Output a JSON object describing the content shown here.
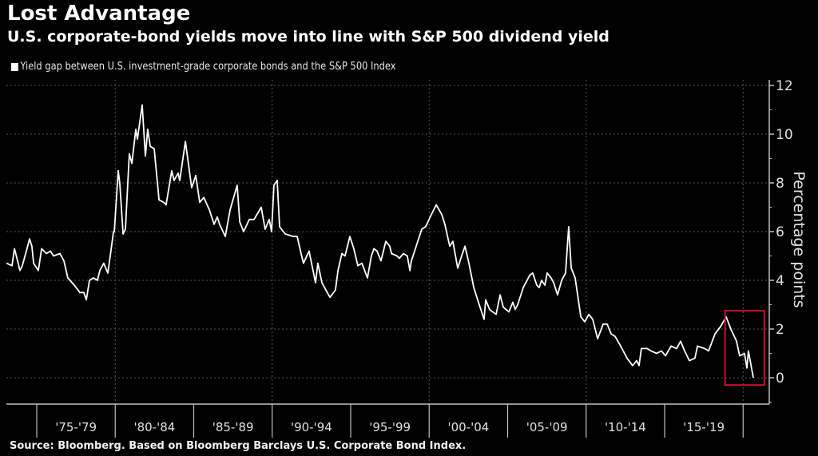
{
  "header": {
    "title": "Lost Advantage",
    "subtitle": "U.S. corporate-bond yields move into line with S&P 500 dividend yield"
  },
  "legend": {
    "label": "Yield gap between U.S. investment-grade corporate bonds and the S&P 500 Index"
  },
  "footer": {
    "source": "Source: Bloomberg. Based on Bloomberg Barclays U.S. Corporate Bond Index."
  },
  "colors": {
    "background": "#000000",
    "line": "#ffffff",
    "highlight_box": "#c8102e",
    "grid": "#555555",
    "axis": "#bfbfbf"
  },
  "chart_data": {
    "type": "line",
    "title": "Lost Advantage",
    "subtitle": "U.S. corporate-bond yields move into line with S&P 500 dividend yield",
    "xlabel": "",
    "ylabel": "Percentage points",
    "y_axis_side": "right",
    "ylim": [
      -1,
      12.2
    ],
    "yticks": [
      0,
      2,
      4,
      6,
      8,
      10,
      12
    ],
    "xlim": [
      1973.0,
      2021.6
    ],
    "x_category_labels": [
      {
        "label": "'75-'79",
        "start": 1975,
        "end": 1980
      },
      {
        "label": "'80-'84",
        "start": 1980,
        "end": 1985
      },
      {
        "label": "'85-'89",
        "start": 1985,
        "end": 1990
      },
      {
        "label": "'90-'94",
        "start": 1990,
        "end": 1995
      },
      {
        "label": "'95-'99",
        "start": 1995,
        "end": 2000
      },
      {
        "label": "'00-'04",
        "start": 2000,
        "end": 2005
      },
      {
        "label": "'05-'09",
        "start": 2005,
        "end": 2010
      },
      {
        "label": "'10-'14",
        "start": 2010,
        "end": 2015
      },
      {
        "label": "'15-'19",
        "start": 2015,
        "end": 2020
      }
    ],
    "x_separators": [
      1975,
      1980,
      1985,
      1990,
      1995,
      2000,
      2005,
      2010,
      2015,
      2020
    ],
    "x_gridlines": [
      1980,
      1990,
      2000,
      2010,
      2020
    ],
    "grid": true,
    "legend_position": "top-left",
    "annotation": {
      "type": "highlight-box",
      "x_range": [
        2018.85,
        2021.35
      ],
      "y_range": [
        -0.3,
        2.75
      ],
      "note": "recent decline highlighted in red box"
    },
    "series": [
      {
        "name": "Yield gap between U.S. investment-grade corporate bonds and the S&P 500 Index",
        "points": [
          [
            1973.07,
            4.7
          ],
          [
            1973.42,
            4.6
          ],
          [
            1973.58,
            5.3
          ],
          [
            1973.78,
            4.8
          ],
          [
            1973.93,
            4.4
          ],
          [
            1974.08,
            4.6
          ],
          [
            1974.34,
            5.2
          ],
          [
            1974.54,
            5.7
          ],
          [
            1974.69,
            5.4
          ],
          [
            1974.8,
            4.7
          ],
          [
            1975.1,
            4.4
          ],
          [
            1975.31,
            5.3
          ],
          [
            1975.61,
            5.1
          ],
          [
            1975.87,
            5.2
          ],
          [
            1976.07,
            5.0
          ],
          [
            1976.48,
            5.1
          ],
          [
            1976.73,
            4.8
          ],
          [
            1976.98,
            4.1
          ],
          [
            1977.39,
            3.8
          ],
          [
            1977.75,
            3.5
          ],
          [
            1978.0,
            3.5
          ],
          [
            1978.16,
            3.2
          ],
          [
            1978.36,
            4.0
          ],
          [
            1978.61,
            4.1
          ],
          [
            1978.87,
            4.0
          ],
          [
            1979.02,
            4.4
          ],
          [
            1979.27,
            4.7
          ],
          [
            1979.53,
            4.3
          ],
          [
            1979.68,
            5.0
          ],
          [
            1979.89,
            6.0
          ],
          [
            1979.94,
            6.0
          ],
          [
            1980.19,
            8.5
          ],
          [
            1980.29,
            8.0
          ],
          [
            1980.5,
            5.9
          ],
          [
            1980.65,
            6.1
          ],
          [
            1980.9,
            9.2
          ],
          [
            1981.06,
            8.8
          ],
          [
            1981.31,
            10.2
          ],
          [
            1981.41,
            9.8
          ],
          [
            1981.72,
            11.2
          ],
          [
            1981.92,
            9.1
          ],
          [
            1982.07,
            10.2
          ],
          [
            1982.23,
            9.5
          ],
          [
            1982.48,
            9.4
          ],
          [
            1982.79,
            7.3
          ],
          [
            1983.09,
            7.2
          ],
          [
            1983.24,
            7.1
          ],
          [
            1983.6,
            8.5
          ],
          [
            1983.75,
            8.1
          ],
          [
            1984.01,
            8.4
          ],
          [
            1984.11,
            8.1
          ],
          [
            1984.47,
            9.7
          ],
          [
            1984.62,
            9.0
          ],
          [
            1984.87,
            7.8
          ],
          [
            1985.13,
            8.3
          ],
          [
            1985.38,
            7.2
          ],
          [
            1985.64,
            7.4
          ],
          [
            1985.99,
            6.9
          ],
          [
            1986.3,
            6.3
          ],
          [
            1986.5,
            6.6
          ],
          [
            1986.65,
            6.3
          ],
          [
            1987.01,
            5.8
          ],
          [
            1987.32,
            6.9
          ],
          [
            1987.77,
            7.9
          ],
          [
            1987.93,
            6.4
          ],
          [
            1988.18,
            6.0
          ],
          [
            1988.54,
            6.5
          ],
          [
            1988.84,
            6.5
          ],
          [
            1989.3,
            7.0
          ],
          [
            1989.55,
            6.1
          ],
          [
            1989.81,
            6.5
          ],
          [
            1989.96,
            6.0
          ],
          [
            1990.11,
            7.9
          ],
          [
            1990.32,
            8.1
          ],
          [
            1990.47,
            6.2
          ],
          [
            1990.83,
            5.9
          ],
          [
            1991.34,
            5.8
          ],
          [
            1991.59,
            5.8
          ],
          [
            1991.84,
            5.1
          ],
          [
            1991.99,
            4.7
          ],
          [
            1992.35,
            5.2
          ],
          [
            1992.76,
            3.9
          ],
          [
            1992.91,
            4.7
          ],
          [
            1993.17,
            3.9
          ],
          [
            1993.42,
            3.6
          ],
          [
            1993.68,
            3.3
          ],
          [
            1994.03,
            3.6
          ],
          [
            1994.19,
            4.4
          ],
          [
            1994.44,
            5.1
          ],
          [
            1994.64,
            5.0
          ],
          [
            1994.95,
            5.8
          ],
          [
            1995.2,
            5.3
          ],
          [
            1995.46,
            4.6
          ],
          [
            1995.71,
            4.7
          ],
          [
            1996.07,
            4.1
          ],
          [
            1996.32,
            5.0
          ],
          [
            1996.48,
            5.3
          ],
          [
            1996.68,
            5.2
          ],
          [
            1996.93,
            4.8
          ],
          [
            1997.24,
            5.6
          ],
          [
            1997.49,
            5.4
          ],
          [
            1997.6,
            5.1
          ],
          [
            1997.95,
            5.0
          ],
          [
            1998.1,
            4.9
          ],
          [
            1998.36,
            5.1
          ],
          [
            1998.61,
            5.0
          ],
          [
            1998.77,
            4.4
          ],
          [
            1998.87,
            4.8
          ],
          [
            1999.12,
            5.3
          ],
          [
            1999.53,
            6.1
          ],
          [
            1999.78,
            6.2
          ],
          [
            2000.14,
            6.7
          ],
          [
            2000.45,
            7.1
          ],
          [
            2000.8,
            6.7
          ],
          [
            2001.0,
            6.3
          ],
          [
            2001.31,
            5.4
          ],
          [
            2001.51,
            5.6
          ],
          [
            2001.82,
            4.5
          ],
          [
            2002.07,
            5.0
          ],
          [
            2002.28,
            5.4
          ],
          [
            2002.53,
            4.7
          ],
          [
            2002.84,
            3.7
          ],
          [
            2003.19,
            3.0
          ],
          [
            2003.5,
            2.4
          ],
          [
            2003.6,
            3.2
          ],
          [
            2003.85,
            2.8
          ],
          [
            2004.26,
            2.6
          ],
          [
            2004.52,
            3.4
          ],
          [
            2004.72,
            2.9
          ],
          [
            2005.08,
            2.7
          ],
          [
            2005.33,
            3.1
          ],
          [
            2005.48,
            2.8
          ],
          [
            2005.64,
            3.0
          ],
          [
            2005.99,
            3.7
          ],
          [
            2006.4,
            4.2
          ],
          [
            2006.6,
            4.3
          ],
          [
            2006.86,
            3.8
          ],
          [
            2007.01,
            3.7
          ],
          [
            2007.16,
            4.0
          ],
          [
            2007.37,
            3.8
          ],
          [
            2007.52,
            4.3
          ],
          [
            2007.77,
            4.1
          ],
          [
            2007.93,
            3.9
          ],
          [
            2008.18,
            3.4
          ],
          [
            2008.44,
            4.0
          ],
          [
            2008.69,
            4.3
          ],
          [
            2008.89,
            6.2
          ],
          [
            2009.05,
            4.5
          ],
          [
            2009.3,
            4.1
          ],
          [
            2009.66,
            2.5
          ],
          [
            2009.91,
            2.3
          ],
          [
            2010.17,
            2.6
          ],
          [
            2010.42,
            2.4
          ],
          [
            2010.73,
            1.6
          ],
          [
            2011.08,
            2.2
          ],
          [
            2011.34,
            2.2
          ],
          [
            2011.59,
            1.8
          ],
          [
            2011.84,
            1.7
          ],
          [
            2012.2,
            1.3
          ],
          [
            2012.61,
            0.8
          ],
          [
            2012.96,
            0.5
          ],
          [
            2013.22,
            0.7
          ],
          [
            2013.37,
            0.5
          ],
          [
            2013.52,
            1.2
          ],
          [
            2013.88,
            1.2
          ],
          [
            2014.13,
            1.1
          ],
          [
            2014.49,
            1.0
          ],
          [
            2014.8,
            1.1
          ],
          [
            2015.05,
            0.9
          ],
          [
            2015.41,
            1.3
          ],
          [
            2015.76,
            1.2
          ],
          [
            2016.02,
            1.5
          ],
          [
            2016.27,
            1.1
          ],
          [
            2016.58,
            0.7
          ],
          [
            2016.93,
            0.8
          ],
          [
            2017.09,
            1.3
          ],
          [
            2017.54,
            1.2
          ],
          [
            2017.8,
            1.1
          ],
          [
            2018.21,
            1.8
          ],
          [
            2018.56,
            2.1
          ],
          [
            2018.92,
            2.5
          ],
          [
            2019.22,
            2.0
          ],
          [
            2019.58,
            1.5
          ],
          [
            2019.78,
            0.9
          ],
          [
            2020.09,
            1.0
          ],
          [
            2020.24,
            0.4
          ],
          [
            2020.34,
            1.1
          ],
          [
            2020.65,
            0.0
          ]
        ]
      }
    ]
  }
}
